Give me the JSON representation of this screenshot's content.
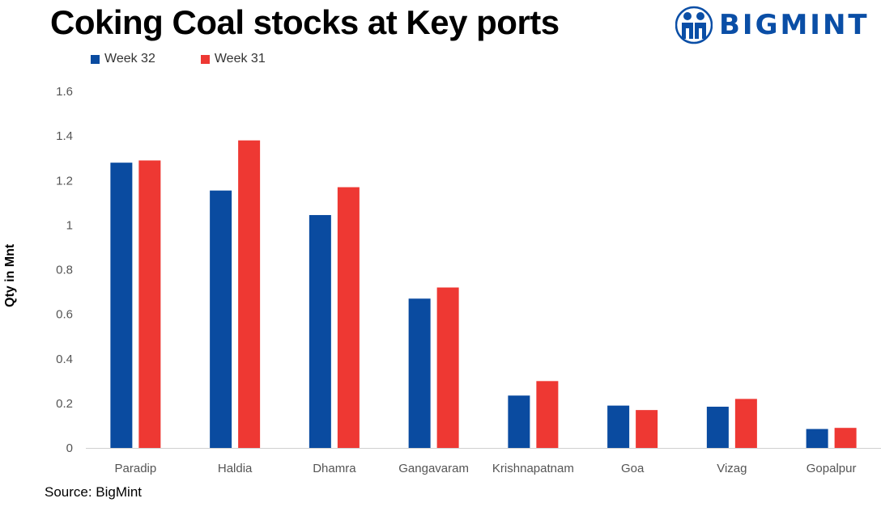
{
  "title": "Coking Coal stocks at Key ports",
  "brand": {
    "name": "BIGMINT",
    "color": "#0a4ea6"
  },
  "source": "Source: BigMint",
  "chart_data": {
    "type": "bar",
    "title": "Coking Coal stocks at Key ports",
    "xlabel": "",
    "ylabel": "Qty in Mnt",
    "ylim": [
      0,
      1.6
    ],
    "yticks": [
      "0",
      "0.2",
      "0.4",
      "0.6",
      "0.8",
      "1",
      "1.2",
      "1.4",
      "1.6"
    ],
    "grid": true,
    "legend_position": "top-left",
    "categories": [
      "Paradip",
      "Haldia",
      "Dhamra",
      "Gangavaram",
      "Krishnapatnam",
      "Goa",
      "Vizag",
      "Gopalpur"
    ],
    "series": [
      {
        "name": "Week 32",
        "color": "#0a4ba0",
        "values": [
          1.28,
          1.155,
          1.045,
          0.67,
          0.235,
          0.19,
          0.185,
          0.085
        ]
      },
      {
        "name": "Week 31",
        "color": "#ee3833",
        "values": [
          1.29,
          1.38,
          1.17,
          0.72,
          0.3,
          0.17,
          0.22,
          0.09
        ]
      }
    ]
  }
}
